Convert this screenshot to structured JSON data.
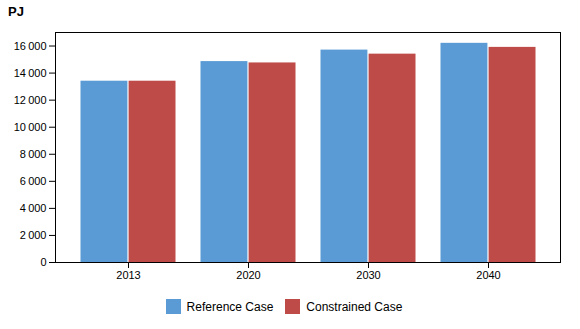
{
  "chart_data": {
    "type": "bar",
    "ylabel": "PJ",
    "categories": [
      "2013",
      "2020",
      "2030",
      "2040"
    ],
    "series": [
      {
        "name": "Reference Case",
        "color": "#5B9BD5",
        "values": [
          13400,
          14850,
          15700,
          16200
        ]
      },
      {
        "name": "Constrained Case",
        "color": "#BE4B48",
        "values": [
          13400,
          14750,
          15400,
          15900
        ]
      }
    ],
    "ylim": [
      0,
      17000
    ],
    "yticks": [
      0,
      {
        "value": 2000,
        "label": "2 000"
      },
      {
        "value": 4000,
        "label": "4 000"
      },
      {
        "value": 6000,
        "label": "6 000"
      },
      {
        "value": 8000,
        "label": "8 000"
      },
      {
        "value": 10000,
        "label": "10 000"
      },
      {
        "value": 12000,
        "label": "12 000"
      },
      {
        "value": 14000,
        "label": "14 000"
      },
      {
        "value": 16000,
        "label": "16 000"
      }
    ],
    "grid": false,
    "legend": "bottom"
  }
}
